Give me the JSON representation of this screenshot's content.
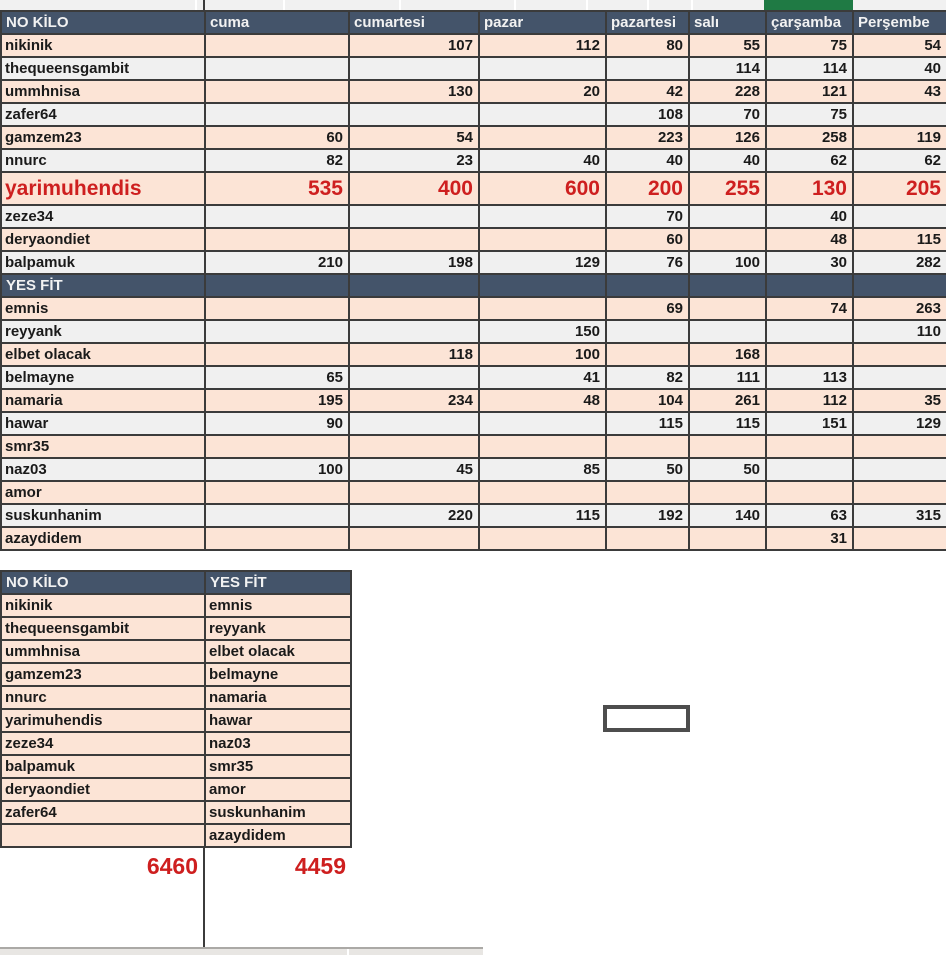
{
  "colors": {
    "header_bg": "#44546A",
    "header_text": "#F2F2F2",
    "row_peach": "#FCE4D6",
    "row_gray": "#F0F0F0",
    "text_dark": "#1A1A1A",
    "accent_red": "#CE1F1F",
    "selection_green": "#1F7A44",
    "border_dark": "#3B3B3B"
  },
  "main_table": {
    "headers": [
      "NO KİLO",
      "cuma",
      "cumartesi",
      "pazar",
      "pazartesi",
      "salı",
      "çarşamba",
      "Perşembe"
    ],
    "rows_section1": [
      {
        "name": "nikinik",
        "values": [
          "",
          "107",
          "112",
          "80",
          "55",
          "75",
          "54"
        ]
      },
      {
        "name": "thequeensgambit",
        "values": [
          "",
          "",
          "",
          "",
          "114",
          "114",
          "40"
        ]
      },
      {
        "name": "ummhnisa",
        "values": [
          "",
          "130",
          "20",
          "42",
          "228",
          "121",
          "43"
        ]
      },
      {
        "name": "zafer64",
        "values": [
          "",
          "",
          "",
          "108",
          "70",
          "75",
          ""
        ]
      },
      {
        "name": "gamzem23",
        "values": [
          "60",
          "54",
          "",
          "223",
          "126",
          "258",
          "119"
        ]
      },
      {
        "name": "nnurc",
        "values": [
          "82",
          "23",
          "40",
          "40",
          "40",
          "62",
          "62"
        ]
      },
      {
        "name": "yarimuhendis",
        "values": [
          "535",
          "400",
          "600",
          "200",
          "255",
          "130",
          "205"
        ],
        "highlight": true
      },
      {
        "name": "zeze34",
        "values": [
          "",
          "",
          "",
          "70",
          "",
          "40",
          ""
        ]
      },
      {
        "name": "deryaondiet",
        "values": [
          "",
          "",
          "",
          "60",
          "",
          "48",
          "115"
        ]
      },
      {
        "name": "balpamuk",
        "values": [
          "210",
          "198",
          "129",
          "76",
          "100",
          "30",
          "282"
        ]
      }
    ],
    "section2_label": "YES FİT",
    "rows_section2": [
      {
        "name": "emnis",
        "values": [
          "",
          "",
          "",
          "69",
          "",
          "74",
          "263"
        ]
      },
      {
        "name": "reyyank",
        "values": [
          "",
          "",
          "150",
          "",
          "",
          "",
          "110"
        ]
      },
      {
        "name": "elbet olacak",
        "values": [
          "",
          "118",
          "100",
          "",
          "168",
          "",
          ""
        ]
      },
      {
        "name": "belmayne",
        "values": [
          "65",
          "",
          "41",
          "82",
          "111",
          "113",
          ""
        ]
      },
      {
        "name": "namaria",
        "values": [
          "195",
          "234",
          "48",
          "104",
          "261",
          "112",
          "35"
        ]
      },
      {
        "name": "hawar",
        "values": [
          "90",
          "",
          "",
          "115",
          "115",
          "151",
          "129"
        ]
      },
      {
        "name": "smr35",
        "values": [
          "",
          "",
          "",
          "",
          "",
          "",
          ""
        ]
      },
      {
        "name": "naz03",
        "values": [
          "100",
          "45",
          "85",
          "50",
          "50",
          "",
          ""
        ]
      },
      {
        "name": "amor",
        "values": [
          "",
          "",
          "",
          "",
          "",
          "",
          ""
        ]
      },
      {
        "name": "suskunhanim",
        "values": [
          "",
          "220",
          "115",
          "192",
          "140",
          "63",
          "315"
        ]
      },
      {
        "name": "azaydidem",
        "values": [
          "",
          "",
          "",
          "",
          "",
          "31",
          ""
        ]
      }
    ]
  },
  "summary_table": {
    "col1_header": "NO KİLO",
    "col2_header": "YES FİT",
    "col1_names": [
      "nikinik",
      "thequeensgambit",
      "ummhnisa",
      "gamzem23",
      "nnurc",
      "yarimuhendis",
      "zeze34",
      "balpamuk",
      "deryaondiet",
      "zafer64",
      ""
    ],
    "col2_names": [
      "emnis",
      "reyyank",
      "elbet olacak",
      "belmayne",
      "namaria",
      "hawar",
      "naz03",
      "smr35",
      "amor",
      "suskunhanim",
      "azaydidem"
    ],
    "col1_total": "6460",
    "col2_total": "4459"
  }
}
